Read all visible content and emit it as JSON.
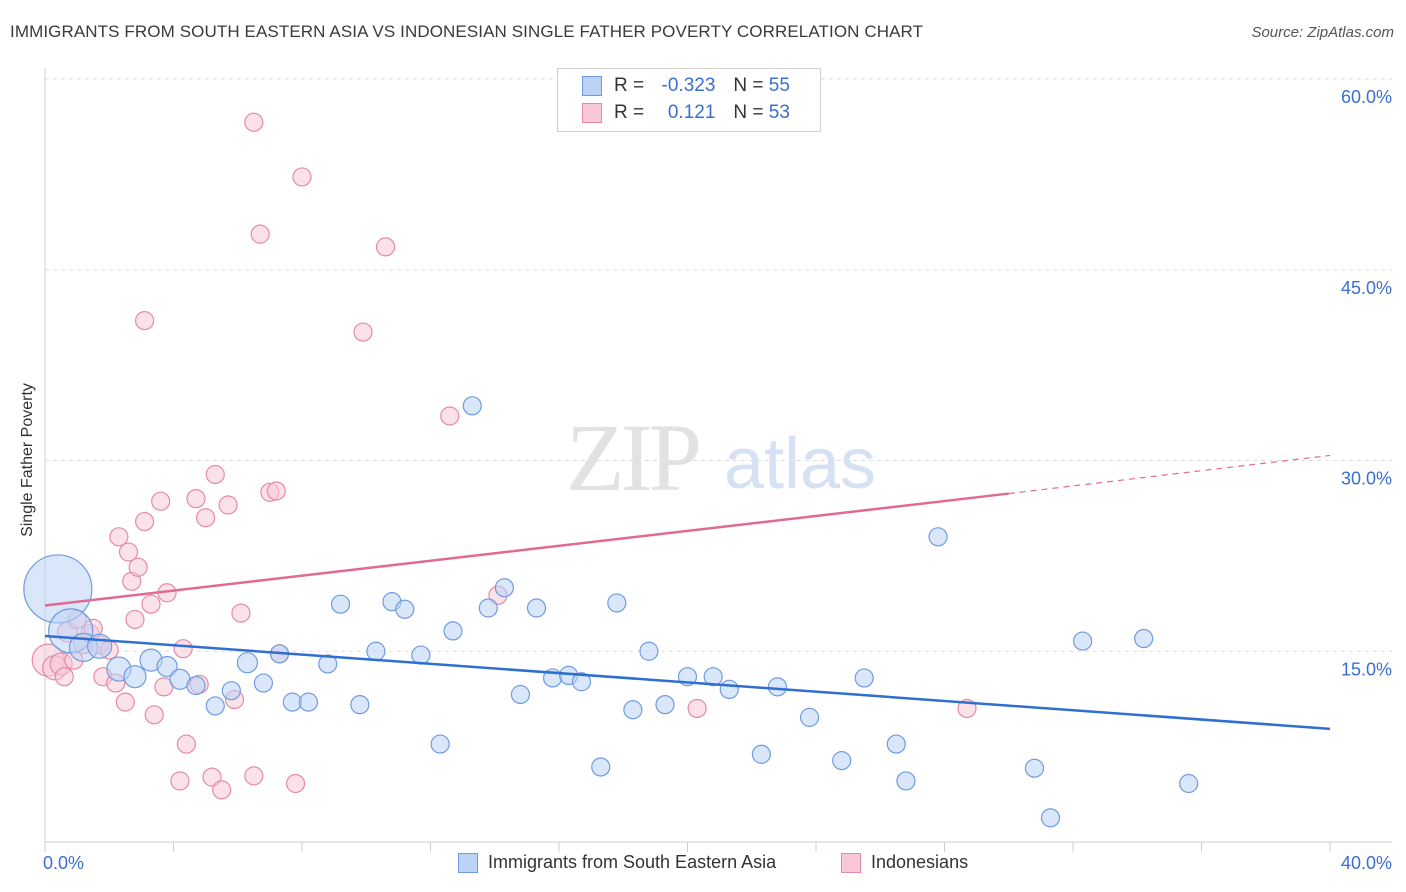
{
  "header": {
    "title": "IMMIGRANTS FROM SOUTH EASTERN ASIA VS INDONESIAN SINGLE FATHER POVERTY CORRELATION CHART",
    "source": "Source: ZipAtlas.com"
  },
  "watermark": {
    "zip": "ZIP",
    "atlas": "atlas"
  },
  "legend_top": {
    "r_label": "R =",
    "n_label": "N =",
    "rows": [
      {
        "r": "-0.323",
        "n": "55",
        "fill": "#bcd3f5",
        "stroke": "#7aa3e0"
      },
      {
        "r": "0.121",
        "n": "53",
        "fill": "#f8c8d6",
        "stroke": "#e58faa"
      }
    ]
  },
  "colors": {
    "blue_fill": "#bcd3f5",
    "blue_stroke": "#6f9be0",
    "blue_line": "#2f6fcf",
    "pink_fill": "#f8c8d6",
    "pink_stroke": "#e68aa8",
    "pink_line": "#e06a93",
    "tick_label": "#3a6fd0",
    "grid": "#dddddd"
  },
  "chart_data": {
    "type": "scatter",
    "title": "IMMIGRANTS FROM SOUTH EASTERN ASIA VS INDONESIAN SINGLE FATHER POVERTY CORRELATION CHART",
    "xlabel": "",
    "ylabel": "Single Father Poverty",
    "xlim": [
      0,
      40
    ],
    "ylim": [
      0,
      60
    ],
    "x_tick_labels": [
      {
        "value": 0,
        "label": "0.0%"
      },
      {
        "value": 40,
        "label": "40.0%"
      }
    ],
    "y_tick_labels": [
      {
        "value": 15,
        "label": "15.0%"
      },
      {
        "value": 30,
        "label": "30.0%"
      },
      {
        "value": 45,
        "label": "45.0%"
      },
      {
        "value": 60,
        "label": "60.0%"
      }
    ],
    "grid": "horizontal dashed",
    "legend_position": "bottom",
    "series": [
      {
        "name": "Immigrants from South Eastern Asia",
        "r": -0.323,
        "n": 55,
        "trend": {
          "x": [
            0,
            40
          ],
          "y": [
            16.2,
            8.9
          ]
        },
        "points": [
          [
            0.4,
            19.9,
            34
          ],
          [
            0.8,
            16.6,
            22
          ],
          [
            1.2,
            15.3,
            14
          ],
          [
            1.7,
            15.4,
            12
          ],
          [
            2.3,
            13.6,
            12
          ],
          [
            2.8,
            13.0,
            11
          ],
          [
            3.3,
            14.3,
            11
          ],
          [
            3.8,
            13.8,
            10
          ],
          [
            4.2,
            12.8,
            10
          ],
          [
            4.7,
            12.3,
            9
          ],
          [
            5.3,
            10.7,
            9
          ],
          [
            5.8,
            11.9,
            9
          ],
          [
            6.3,
            14.1,
            10
          ],
          [
            6.8,
            12.5,
            9
          ],
          [
            7.3,
            14.8,
            9
          ],
          [
            7.7,
            11.0,
            9
          ],
          [
            8.2,
            11.0,
            9
          ],
          [
            8.8,
            14.0,
            9
          ],
          [
            9.2,
            18.7,
            9
          ],
          [
            9.8,
            10.8,
            9
          ],
          [
            10.3,
            15.0,
            9
          ],
          [
            10.8,
            18.9,
            9
          ],
          [
            11.2,
            18.3,
            9
          ],
          [
            11.7,
            14.7,
            9
          ],
          [
            12.3,
            7.7,
            9
          ],
          [
            12.7,
            16.6,
            9
          ],
          [
            13.3,
            34.3,
            9
          ],
          [
            13.8,
            18.4,
            9
          ],
          [
            14.3,
            20.0,
            9
          ],
          [
            14.8,
            11.6,
            9
          ],
          [
            15.3,
            18.4,
            9
          ],
          [
            15.8,
            12.9,
            9
          ],
          [
            16.3,
            13.1,
            9
          ],
          [
            16.7,
            12.6,
            9
          ],
          [
            17.3,
            5.9,
            9
          ],
          [
            17.8,
            18.8,
            9
          ],
          [
            18.3,
            10.4,
            9
          ],
          [
            18.8,
            15.0,
            9
          ],
          [
            19.3,
            10.8,
            9
          ],
          [
            20.0,
            13.0,
            9
          ],
          [
            20.8,
            13.0,
            9
          ],
          [
            21.3,
            12.0,
            9
          ],
          [
            22.3,
            6.9,
            9
          ],
          [
            22.8,
            12.2,
            9
          ],
          [
            23.8,
            9.8,
            9
          ],
          [
            24.8,
            6.4,
            9
          ],
          [
            25.5,
            12.9,
            9
          ],
          [
            26.5,
            7.7,
            9
          ],
          [
            26.8,
            4.8,
            9
          ],
          [
            27.8,
            24.0,
            9
          ],
          [
            30.8,
            5.8,
            9
          ],
          [
            31.3,
            1.9,
            9
          ],
          [
            32.3,
            15.8,
            9
          ],
          [
            34.2,
            16.0,
            9
          ],
          [
            35.6,
            4.6,
            9
          ]
        ]
      },
      {
        "name": "Indonesians",
        "r": 0.121,
        "n": 53,
        "trend": {
          "x": [
            0,
            30
          ],
          "y": [
            18.6,
            27.4
          ]
        },
        "trend_dashed": {
          "x": [
            30,
            40
          ],
          "y": [
            27.4,
            30.4
          ]
        },
        "points": [
          [
            0.1,
            14.3,
            16
          ],
          [
            0.3,
            13.7,
            12
          ],
          [
            0.5,
            14.0,
            11
          ],
          [
            0.6,
            13.0,
            9
          ],
          [
            0.7,
            16.5,
            10
          ],
          [
            0.9,
            14.3,
            9
          ],
          [
            1.0,
            17.5,
            9
          ],
          [
            1.2,
            15.6,
            10
          ],
          [
            1.4,
            16.4,
            9
          ],
          [
            1.5,
            16.8,
            9
          ],
          [
            1.7,
            15.5,
            9
          ],
          [
            1.8,
            13.0,
            9
          ],
          [
            2.0,
            15.1,
            9
          ],
          [
            2.2,
            12.5,
            9
          ],
          [
            2.3,
            24.0,
            9
          ],
          [
            2.5,
            11.0,
            9
          ],
          [
            2.6,
            22.8,
            9
          ],
          [
            2.7,
            20.5,
            9
          ],
          [
            2.8,
            17.5,
            9
          ],
          [
            2.9,
            21.6,
            9
          ],
          [
            3.1,
            41.0,
            9
          ],
          [
            3.1,
            25.2,
            9
          ],
          [
            3.3,
            18.7,
            9
          ],
          [
            3.4,
            10.0,
            9
          ],
          [
            3.6,
            26.8,
            9
          ],
          [
            3.7,
            12.2,
            9
          ],
          [
            3.8,
            19.6,
            9
          ],
          [
            4.2,
            4.8,
            9
          ],
          [
            4.3,
            15.2,
            9
          ],
          [
            4.4,
            7.7,
            9
          ],
          [
            4.7,
            27.0,
            9
          ],
          [
            4.8,
            12.4,
            9
          ],
          [
            5.0,
            25.5,
            9
          ],
          [
            5.2,
            5.1,
            9
          ],
          [
            5.3,
            28.9,
            9
          ],
          [
            5.5,
            4.1,
            9
          ],
          [
            5.7,
            26.5,
            9
          ],
          [
            5.9,
            11.2,
            9
          ],
          [
            6.1,
            18.0,
            9
          ],
          [
            6.5,
            56.6,
            9
          ],
          [
            6.5,
            5.2,
            9
          ],
          [
            6.7,
            47.8,
            9
          ],
          [
            7.0,
            27.5,
            9
          ],
          [
            7.2,
            27.6,
            9
          ],
          [
            7.3,
            14.8,
            9
          ],
          [
            7.8,
            4.6,
            9
          ],
          [
            8.0,
            52.3,
            9
          ],
          [
            9.9,
            40.1,
            9
          ],
          [
            10.6,
            46.8,
            9
          ],
          [
            12.6,
            33.5,
            9
          ],
          [
            14.1,
            19.4,
            9
          ],
          [
            20.3,
            10.5,
            9
          ],
          [
            28.7,
            10.5,
            9
          ]
        ]
      }
    ]
  }
}
